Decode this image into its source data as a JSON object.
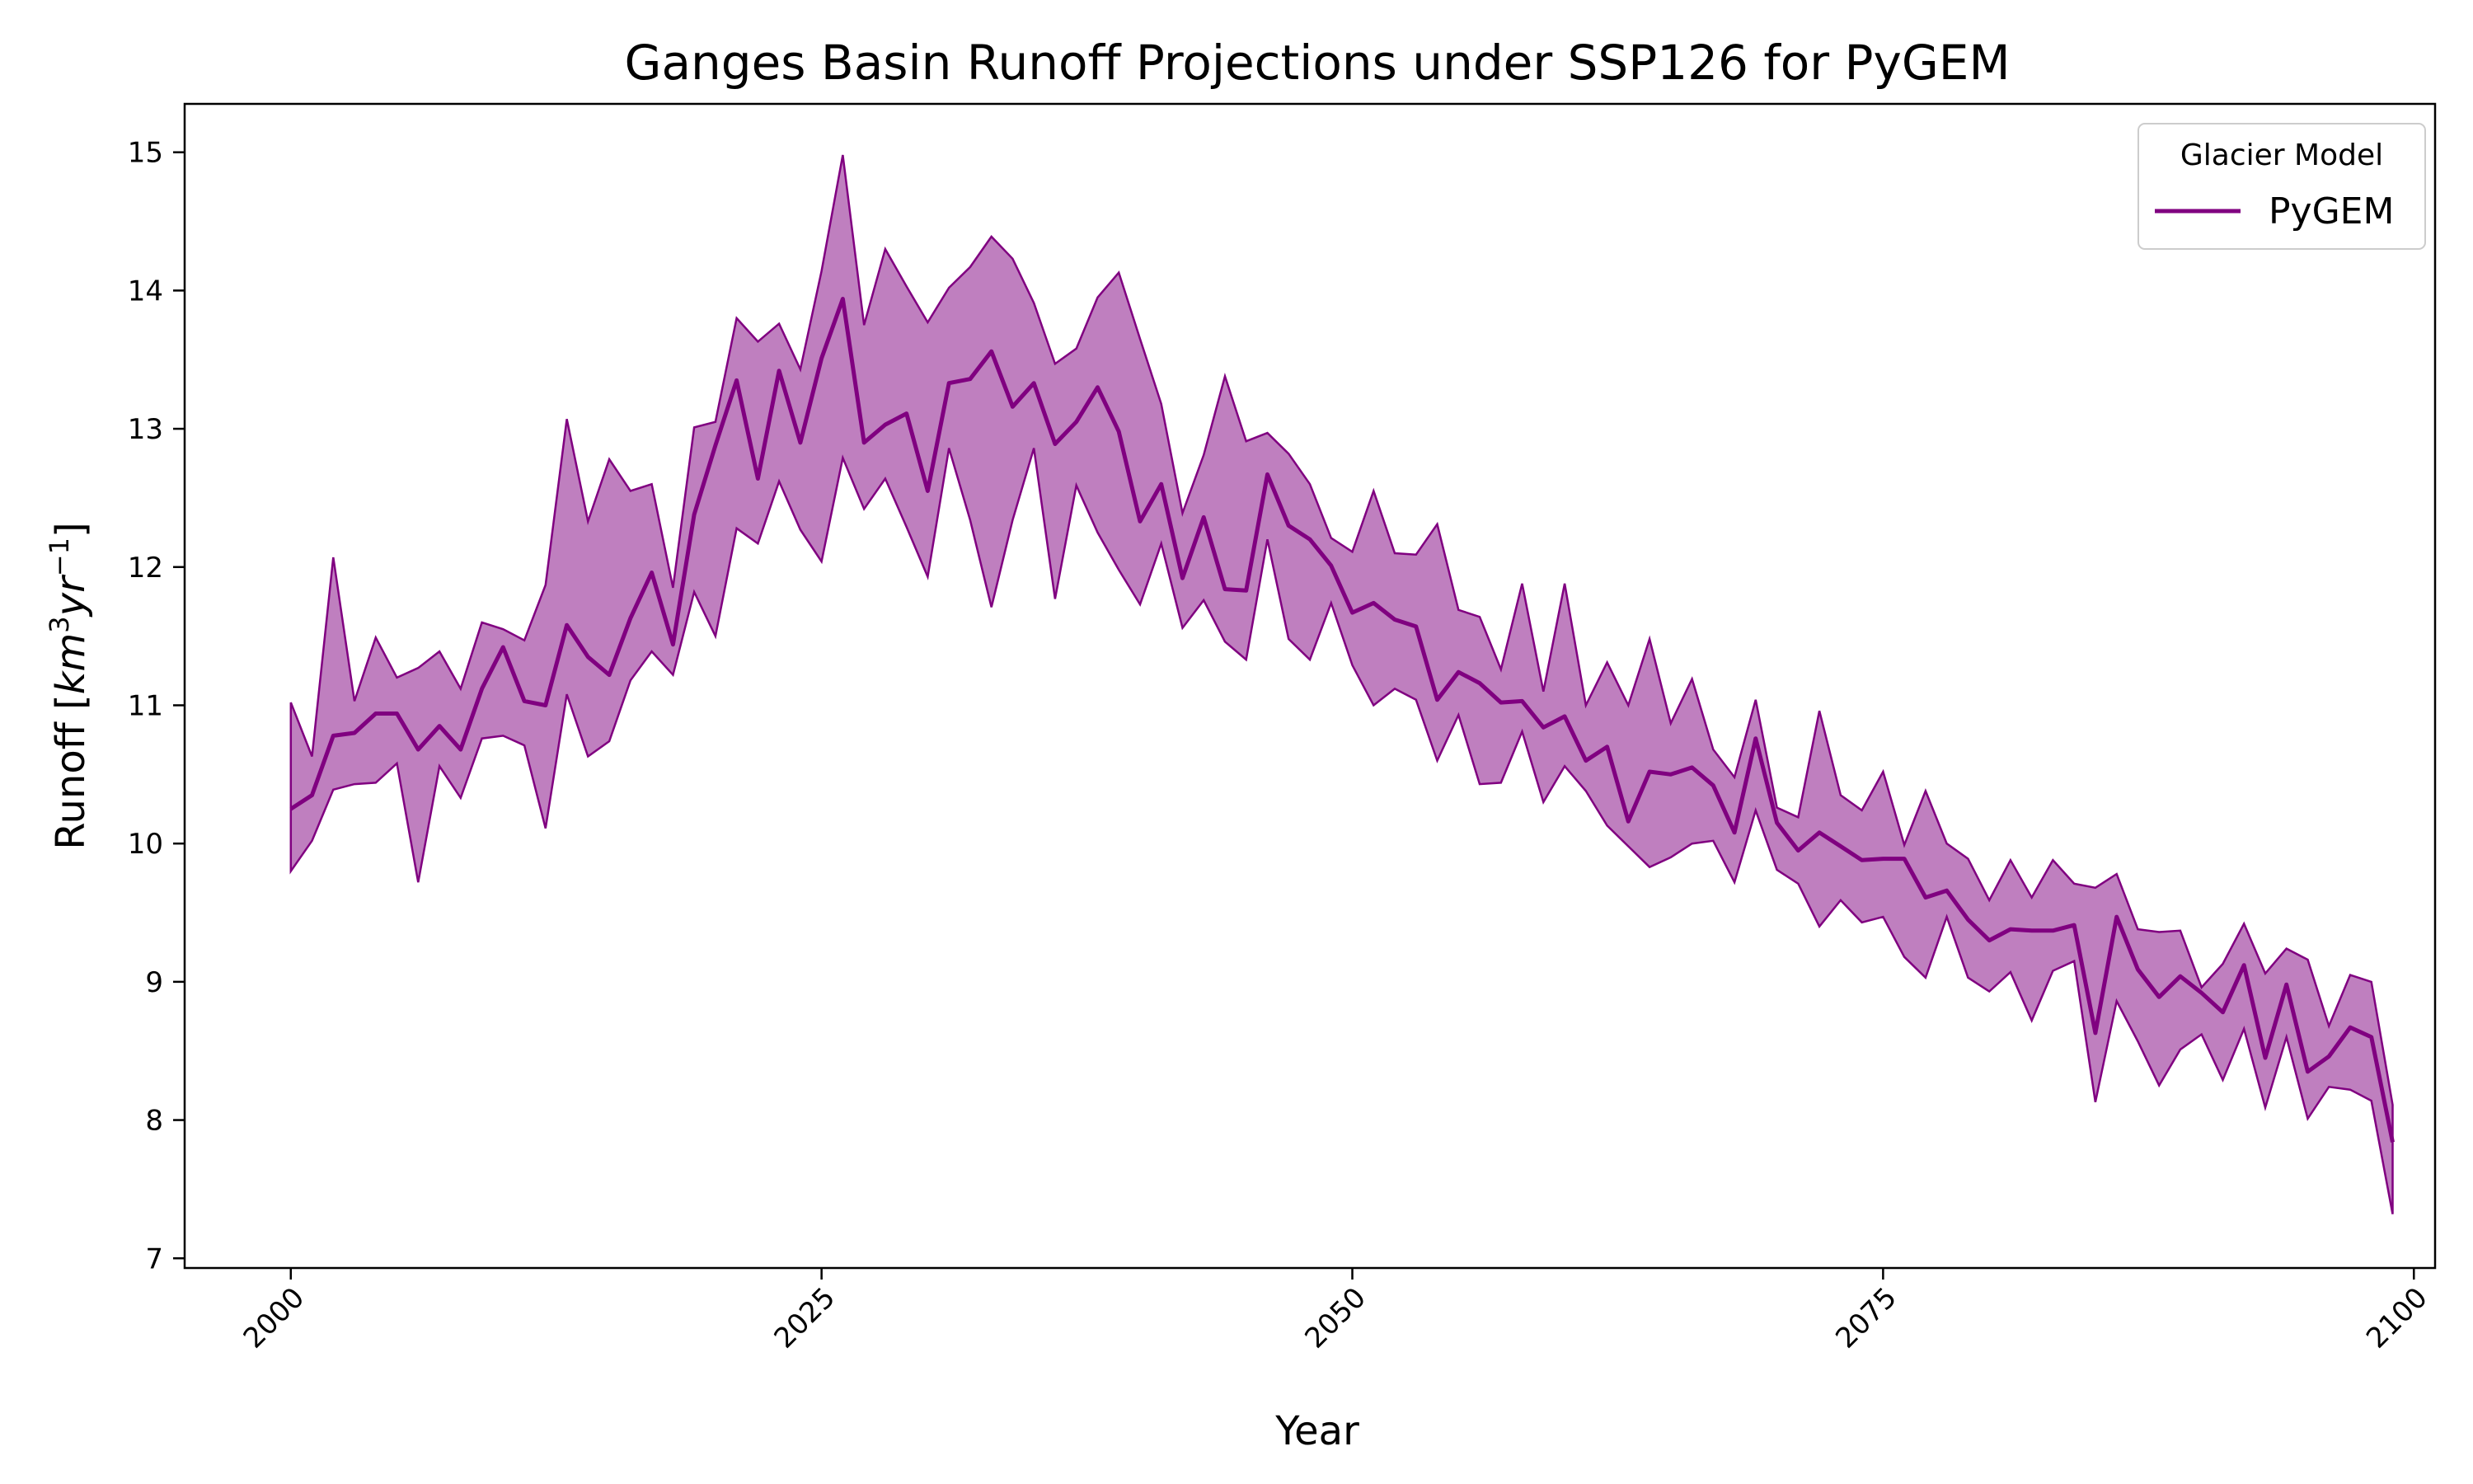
{
  "chart_data": {
    "type": "line",
    "title": "Ganges Basin Runoff Projections under SSP126 for PyGEM",
    "xlabel": "Year",
    "ylabel_prefix": "Runoff [",
    "ylabel_units_a": "km",
    "ylabel_exp_a": "3",
    "ylabel_units_b": "yr",
    "ylabel_exp_b": "−1",
    "ylabel_suffix": "]",
    "xlim": [
      1995,
      2101
    ],
    "ylim": [
      6.93,
      15.35
    ],
    "x_ticks": [
      "2000",
      "2025",
      "2050",
      "2075",
      "2100"
    ],
    "y_ticks": [
      "7",
      "8",
      "9",
      "10",
      "11",
      "12",
      "13",
      "14",
      "15"
    ],
    "legend": {
      "title": "Glacier Model",
      "placement": "top-right"
    },
    "series": [
      {
        "name": "PyGEM",
        "color": "#800080",
        "band_color": "#800080",
        "x_start": 2000,
        "values": [
          10.25,
          10.35,
          10.78,
          10.8,
          10.94,
          10.94,
          10.68,
          10.85,
          10.68,
          11.12,
          11.42,
          11.03,
          11.0,
          11.58,
          11.35,
          11.22,
          11.63,
          11.96,
          11.44,
          12.38,
          12.88,
          13.35,
          12.64,
          13.42,
          12.9,
          13.51,
          13.94,
          12.9,
          13.03,
          13.11,
          12.55,
          13.33,
          13.36,
          13.56,
          13.16,
          13.33,
          12.89,
          13.05,
          13.3,
          12.98,
          12.33,
          12.6,
          11.92,
          12.36,
          11.84,
          11.83,
          12.67,
          12.3,
          12.2,
          12.01,
          11.67,
          11.74,
          11.62,
          11.57,
          11.04,
          11.24,
          11.16,
          11.02,
          11.03,
          10.84,
          10.92,
          10.6,
          10.7,
          10.16,
          10.52,
          10.5,
          10.55,
          10.42,
          10.08,
          10.76,
          10.15,
          9.95,
          10.08,
          9.98,
          9.88,
          9.89,
          9.89,
          9.61,
          9.66,
          9.45,
          9.3,
          9.38,
          9.37,
          9.37,
          9.41,
          8.63,
          9.47,
          9.09,
          8.89,
          9.04,
          8.92,
          8.78,
          9.12,
          8.45,
          8.98,
          8.35,
          8.46,
          8.67,
          8.6,
          7.84
        ],
        "lower": [
          9.8,
          10.02,
          10.39,
          10.43,
          10.44,
          10.58,
          9.72,
          10.56,
          10.33,
          10.76,
          10.78,
          10.71,
          10.11,
          11.08,
          10.63,
          10.74,
          11.18,
          11.39,
          11.22,
          11.82,
          11.5,
          12.28,
          12.17,
          12.62,
          12.27,
          12.04,
          12.79,
          12.42,
          12.64,
          12.29,
          11.93,
          12.86,
          12.34,
          11.71,
          12.34,
          12.86,
          11.77,
          12.59,
          12.25,
          11.98,
          11.73,
          12.17,
          11.56,
          11.76,
          11.46,
          11.33,
          12.2,
          11.48,
          11.33,
          11.74,
          11.29,
          11.0,
          11.12,
          11.04,
          10.6,
          10.93,
          10.43,
          10.44,
          10.81,
          10.3,
          10.56,
          10.38,
          10.13,
          9.98,
          9.83,
          9.9,
          10.0,
          10.02,
          9.72,
          10.24,
          9.81,
          9.71,
          9.4,
          9.59,
          9.43,
          9.47,
          9.18,
          9.03,
          9.47,
          9.03,
          8.93,
          9.07,
          8.72,
          9.08,
          9.15,
          8.13,
          8.86,
          8.57,
          8.25,
          8.51,
          8.62,
          8.29,
          8.66,
          8.09,
          8.6,
          8.01,
          8.24,
          8.22,
          8.14,
          7.32
        ],
        "upper": [
          11.02,
          10.63,
          12.07,
          11.03,
          11.49,
          11.2,
          11.27,
          11.39,
          11.12,
          11.6,
          11.55,
          11.47,
          11.87,
          13.07,
          12.33,
          12.78,
          12.55,
          12.6,
          11.85,
          13.01,
          13.05,
          13.8,
          13.63,
          13.76,
          13.43,
          14.14,
          14.98,
          13.75,
          14.3,
          14.03,
          13.77,
          14.02,
          14.17,
          14.39,
          14.23,
          13.91,
          13.47,
          13.58,
          13.95,
          14.13,
          13.65,
          13.18,
          12.39,
          12.81,
          13.38,
          12.91,
          12.97,
          12.82,
          12.6,
          12.21,
          12.11,
          12.55,
          12.1,
          12.09,
          12.31,
          11.69,
          11.64,
          11.26,
          11.88,
          11.1,
          11.88,
          11.0,
          11.31,
          11.0,
          11.48,
          10.87,
          11.19,
          10.68,
          10.48,
          11.04,
          10.26,
          10.19,
          10.96,
          10.35,
          10.24,
          10.52,
          9.99,
          10.38,
          10.0,
          9.89,
          9.59,
          9.88,
          9.61,
          9.88,
          9.71,
          9.68,
          9.78,
          9.38,
          9.36,
          9.37,
          8.96,
          9.13,
          9.42,
          9.06,
          9.24,
          9.16,
          8.68,
          9.05,
          9.0,
          8.11
        ]
      }
    ]
  }
}
